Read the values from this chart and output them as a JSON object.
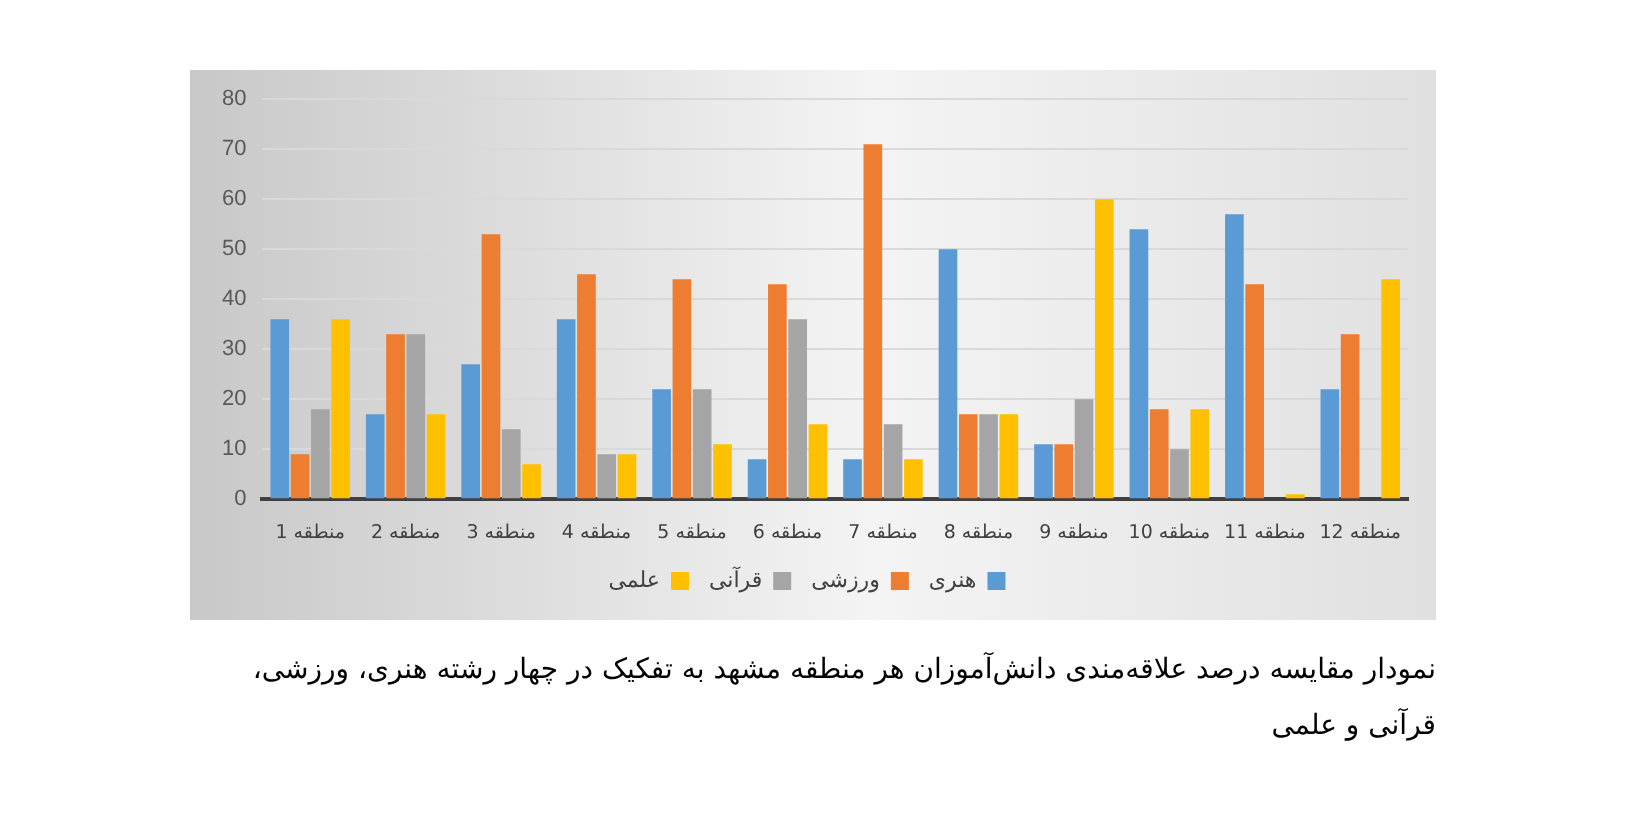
{
  "chart_data": {
    "type": "bar",
    "title": "نمودار مقایسه درصد علاقه‌مندی دانش‌آموزان هر منطقه مشهد به تفکیک در چهار رشته هنری، ورزشی، قرآنی و علمی",
    "categories": [
      "منطقه 1",
      "منطقه 2",
      "منطقه 3",
      "منطقه 4",
      "منطقه 5",
      "منطقه 6",
      "منطقه 7",
      "منطقه 8",
      "منطقه 9",
      "منطقه 10",
      "منطقه 11",
      "منطقه 12"
    ],
    "series": [
      {
        "name": "هنری",
        "color": "#5b9bd5",
        "values": [
          36,
          17,
          27,
          36,
          22,
          8,
          8,
          50,
          11,
          54,
          57,
          22
        ]
      },
      {
        "name": "ورزشی",
        "color": "#ed7d31",
        "values": [
          9,
          33,
          53,
          45,
          44,
          43,
          71,
          17,
          11,
          18,
          43,
          33
        ]
      },
      {
        "name": "قرآنی",
        "color": "#a5a5a5",
        "values": [
          18,
          33,
          14,
          9,
          22,
          36,
          15,
          17,
          20,
          10,
          0,
          0
        ]
      },
      {
        "name": "علمی",
        "color": "#ffc000",
        "values": [
          36,
          17,
          7,
          9,
          11,
          15,
          8,
          17,
          60,
          18,
          1,
          44
        ]
      }
    ],
    "ylim": [
      0,
      80
    ],
    "yticks": [
      0,
      10,
      20,
      30,
      40,
      50,
      60,
      70,
      80
    ],
    "grid": "y",
    "legend": "bottom"
  }
}
